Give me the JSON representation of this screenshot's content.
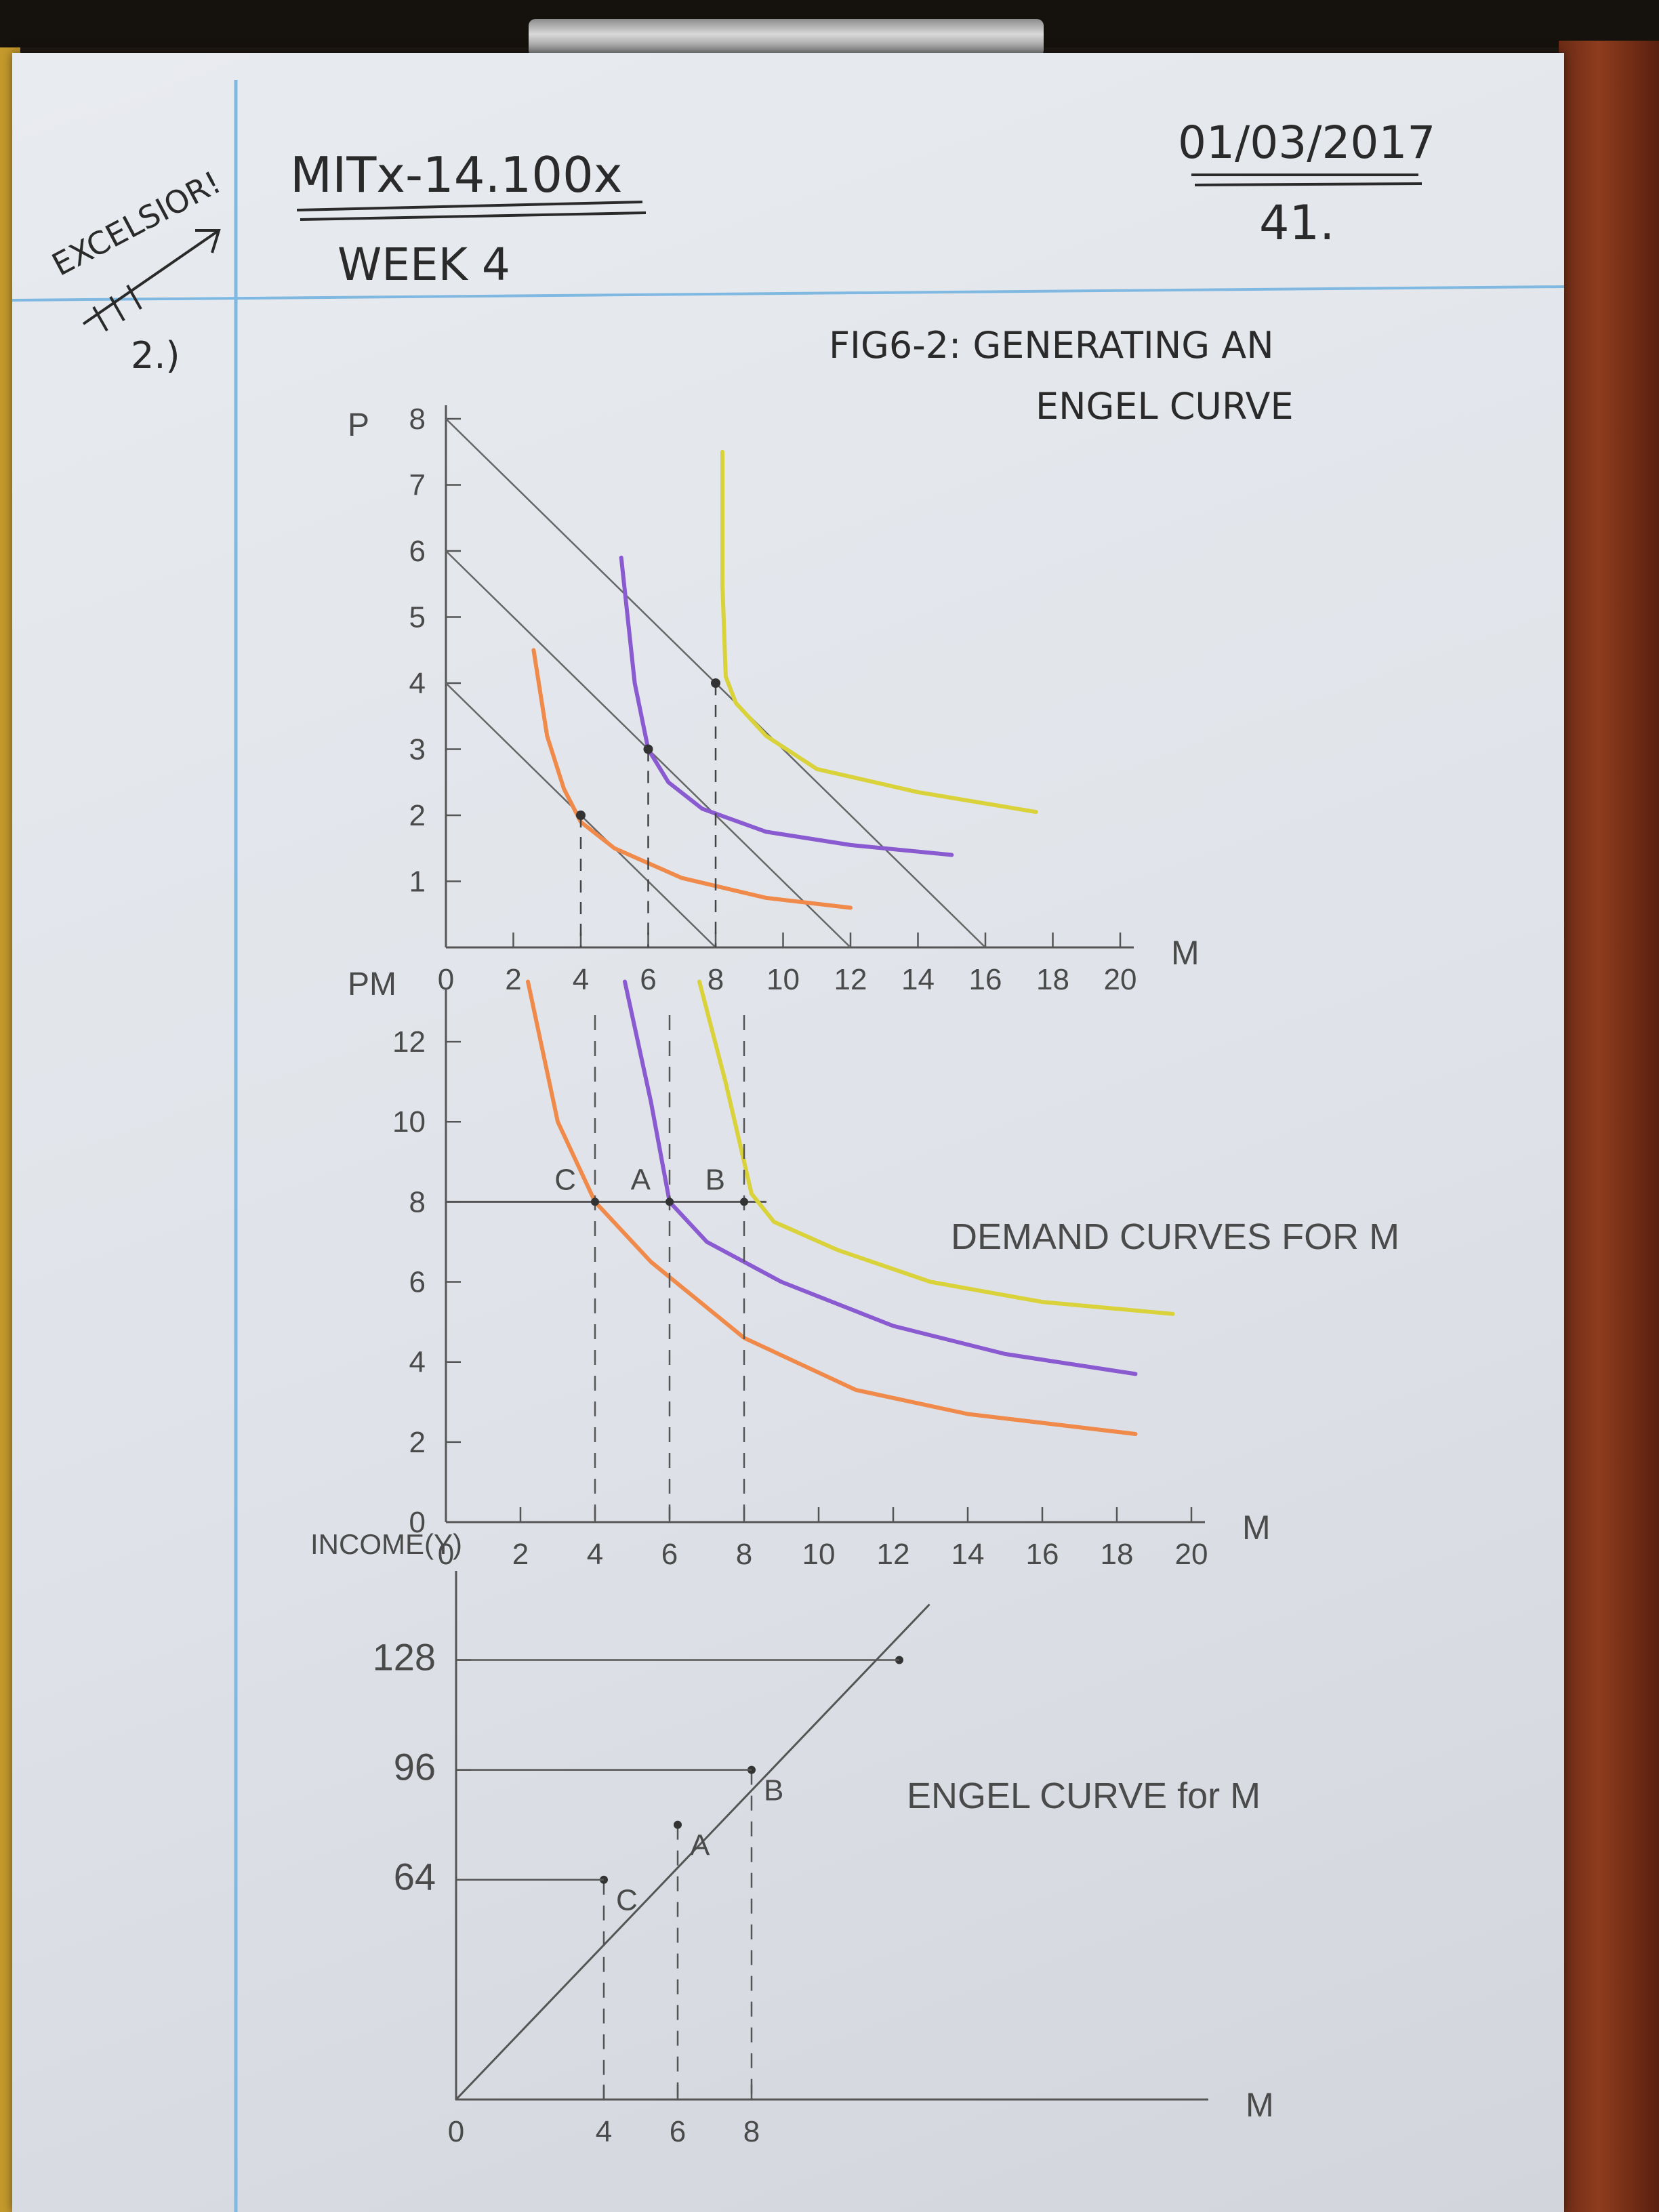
{
  "header": {
    "margin_note": "EXCELSIOR!",
    "course": "MITx-14.100x",
    "week": "WEEK 4",
    "date": "01/03/2017",
    "page_number": "41."
  },
  "problem_number": "2.)",
  "figure_title_line1": "FIG6-2: GENERATING AN",
  "figure_title_line2": "ENGEL CURVE",
  "colors": {
    "orange": "#f08a4b",
    "purple": "#8a5ad0",
    "yellow": "#d9d23a",
    "pencil": "#555555",
    "margin_line": "#7fb8e0"
  },
  "chart_data": [
    {
      "type": "line",
      "xlabel": "M",
      "ylabel": "P",
      "xlim": [
        0,
        20
      ],
      "ylim": [
        0,
        8
      ],
      "x_ticks": [
        0,
        2,
        4,
        6,
        8,
        10,
        12,
        14,
        16,
        18,
        20
      ],
      "y_ticks": [
        1,
        2,
        3,
        4,
        5,
        6,
        7,
        8
      ],
      "budget_lines": [
        {
          "x": [
            0,
            8
          ],
          "y": [
            4,
            0
          ]
        },
        {
          "x": [
            0,
            12
          ],
          "y": [
            6,
            0
          ]
        },
        {
          "x": [
            0,
            16
          ],
          "y": [
            8,
            0
          ]
        }
      ],
      "series": [
        {
          "color": "orange",
          "x": [
            2.6,
            3.0,
            3.5,
            4.0,
            5.0,
            7.0,
            9.5,
            12.0
          ],
          "y": [
            4.5,
            3.2,
            2.4,
            1.9,
            1.5,
            1.05,
            0.75,
            0.6
          ]
        },
        {
          "color": "purple",
          "x": [
            5.2,
            5.6,
            6.0,
            6.6,
            7.6,
            9.5,
            12.0,
            15.0
          ],
          "y": [
            5.9,
            4.0,
            3.0,
            2.5,
            2.1,
            1.75,
            1.55,
            1.4
          ]
        },
        {
          "color": "yellow",
          "x": [
            8.2,
            8.2,
            8.3,
            8.6,
            9.5,
            11.0,
            14.0,
            17.5
          ],
          "y": [
            7.5,
            5.5,
            4.1,
            3.7,
            3.2,
            2.7,
            2.35,
            2.05
          ]
        }
      ],
      "tangency_points": [
        {
          "x": 4,
          "y": 2
        },
        {
          "x": 6,
          "y": 3
        },
        {
          "x": 8,
          "y": 4
        }
      ]
    },
    {
      "type": "line",
      "title": "DEMAND CURVES FOR M",
      "xlabel": "M",
      "ylabel": "PM",
      "xlim": [
        0,
        20
      ],
      "ylim": [
        0,
        13
      ],
      "x_ticks": [
        0,
        2,
        4,
        6,
        8,
        10,
        12,
        14,
        16,
        18,
        20
      ],
      "y_ticks": [
        0,
        2,
        4,
        6,
        8,
        10,
        12
      ],
      "price_line": 8,
      "points": [
        {
          "label": "C",
          "x": 4,
          "y": 8
        },
        {
          "label": "A",
          "x": 6,
          "y": 8
        },
        {
          "label": "B",
          "x": 8,
          "y": 8
        }
      ],
      "series": [
        {
          "color": "orange",
          "x": [
            2.2,
            3.0,
            4.0,
            5.5,
            8.0,
            11.0,
            14.0,
            18.5
          ],
          "y": [
            13.5,
            10.0,
            8.0,
            6.5,
            4.6,
            3.3,
            2.7,
            2.2
          ]
        },
        {
          "color": "purple",
          "x": [
            4.8,
            5.5,
            6.0,
            7.0,
            9.0,
            12.0,
            15.0,
            18.5
          ],
          "y": [
            13.5,
            10.5,
            8.0,
            7.0,
            6.0,
            4.9,
            4.2,
            3.7
          ]
        },
        {
          "color": "yellow",
          "x": [
            6.8,
            7.5,
            8.2,
            8.8,
            10.5,
            13.0,
            16.0,
            19.5
          ],
          "y": [
            13.5,
            11.0,
            8.2,
            7.5,
            6.8,
            6.0,
            5.5,
            5.2
          ]
        }
      ]
    },
    {
      "type": "line",
      "title": "ENGEL CURVE for M",
      "xlabel": "M",
      "ylabel": "INCOME(Y)",
      "xlim": [
        0,
        20
      ],
      "ylim": [
        0,
        150
      ],
      "x_ticks": [
        0,
        4,
        6,
        8
      ],
      "y_ticks": [
        64,
        96,
        128
      ],
      "series": [
        {
          "color": "pencil",
          "x": [
            0,
            12.8
          ],
          "y": [
            0,
            144
          ]
        }
      ],
      "points": [
        {
          "label": "C",
          "x": 4,
          "y": 64
        },
        {
          "label": "A",
          "x": 6,
          "y": 80
        },
        {
          "label": "B",
          "x": 8,
          "y": 96
        },
        {
          "label": "",
          "x": 12,
          "y": 128
        }
      ]
    }
  ]
}
